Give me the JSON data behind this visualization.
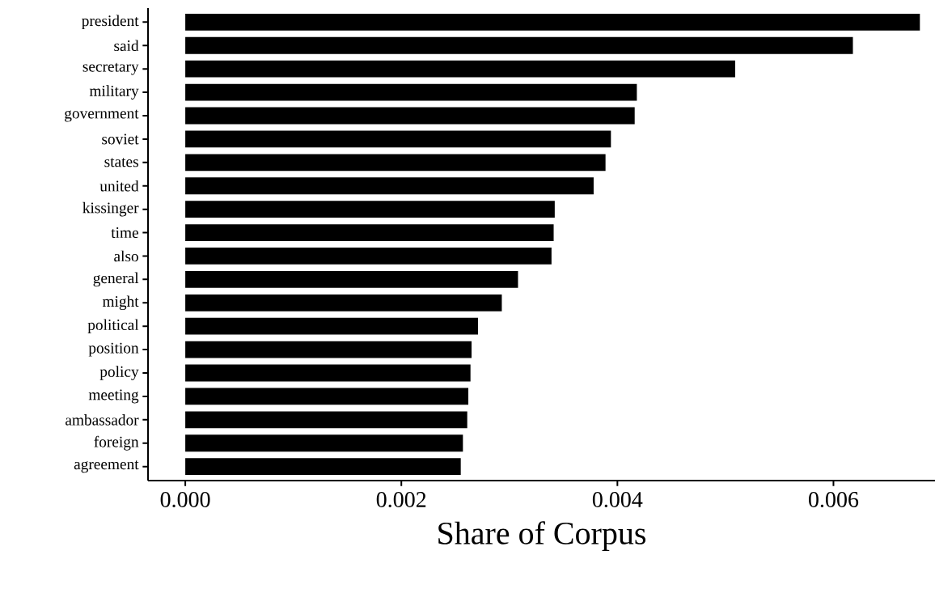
{
  "chart_data": {
    "type": "bar",
    "orientation": "horizontal",
    "xlabel": "Share of Corpus",
    "categories": [
      "president",
      "said",
      "secretary",
      "military",
      "government",
      "soviet",
      "states",
      "united",
      "kissinger",
      "time",
      "also",
      "general",
      "might",
      "political",
      "position",
      "policy",
      "meeting",
      "ambassador",
      "foreign",
      "agreement"
    ],
    "values": [
      0.0068,
      0.00618,
      0.00509,
      0.00418,
      0.00416,
      0.00394,
      0.00389,
      0.00378,
      0.00342,
      0.00341,
      0.00339,
      0.00308,
      0.00293,
      0.00271,
      0.00265,
      0.00264,
      0.00262,
      0.00261,
      0.00257,
      0.00255
    ],
    "color": "#000000",
    "xlim": [
      -0.000345,
      0.00694
    ],
    "xticks": [
      {
        "value": 0,
        "label": "0.000"
      },
      {
        "value": 0.002,
        "label": "0.002"
      },
      {
        "value": 0.004,
        "label": "0.004"
      },
      {
        "value": 0.006,
        "label": "0.006"
      }
    ]
  }
}
